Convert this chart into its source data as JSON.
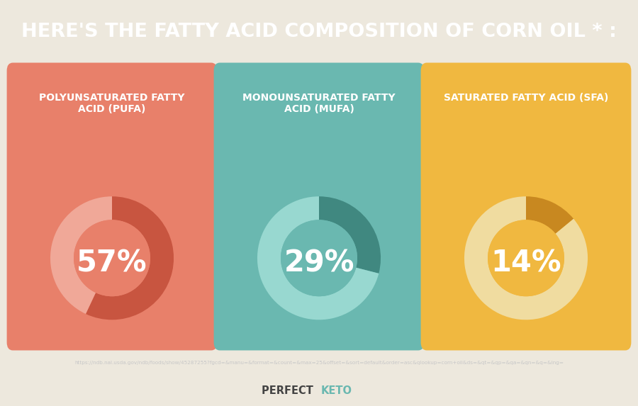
{
  "title": "HERE'S THE FATTY ACID COMPOSITION OF CORN OIL * :",
  "title_bg": "#636363",
  "title_color": "#ffffff",
  "bg_color": "#ede8dd",
  "footer_bg": "#636363",
  "footer_url": "https://ndb.nal.usda.gov/ndb/foods/show/45287255?fgcd=&manu=&format=&count=&max=25&offset=&sort=default&order=asc&qlookup=corn+oil&ds=&qt=&qp=&qa=&qn=&q=&ing=",
  "panels": [
    {
      "label": "POLYUNSATURATED FATTY\nACID (PUFA)",
      "value": 57,
      "pct_text": "57%",
      "bg_color": "#e8806a",
      "ring_filled_color": "#c85540",
      "ring_empty_color": "#f0a898",
      "center_color": "#e8806a"
    },
    {
      "label": "MONOUNSATURATED FATTY\nACID (MUFA)",
      "value": 29,
      "pct_text": "29%",
      "bg_color": "#6ab8b0",
      "ring_filled_color": "#408880",
      "ring_empty_color": "#98d8d0",
      "center_color": "#6ab8b0"
    },
    {
      "label": "SATURATED FATTY ACID (SFA)",
      "value": 14,
      "pct_text": "14%",
      "bg_color": "#f0b840",
      "ring_filled_color": "#c88820",
      "ring_empty_color": "#f0dca0",
      "center_color": "#f0b840"
    }
  ]
}
